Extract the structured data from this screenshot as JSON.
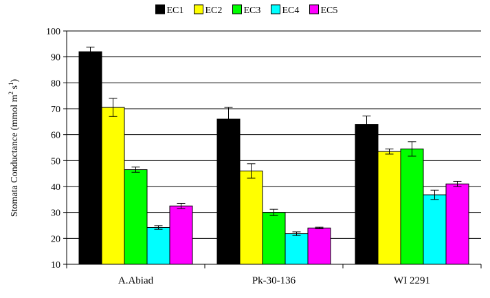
{
  "chart_data": {
    "type": "bar",
    "title": "",
    "xlabel": "",
    "ylabel": "Stomata Conductance (mmol m",
    "ylabel_sup1": "2",
    "ylabel_mid": " s",
    "ylabel_sup2": "1",
    "ylabel_end": ")",
    "ylim": [
      10,
      100
    ],
    "yticks": [
      10,
      20,
      30,
      40,
      50,
      60,
      70,
      80,
      90,
      100
    ],
    "grid": true,
    "legend_position": "top-center",
    "categories": [
      "A.Abiad",
      "Pk-30-136",
      "WI 2291"
    ],
    "series": [
      {
        "name": "EC1",
        "color": "#000000",
        "values": [
          92,
          66,
          64
        ],
        "errors": [
          1.8,
          4.5,
          3.2
        ]
      },
      {
        "name": "EC2",
        "color": "#ffff00",
        "values": [
          70.5,
          46,
          53.5
        ],
        "errors": [
          3.5,
          2.8,
          1
        ]
      },
      {
        "name": "EC3",
        "color": "#00ff00",
        "values": [
          46.5,
          30,
          54.5
        ],
        "errors": [
          1,
          1.2,
          2.8
        ]
      },
      {
        "name": "EC4",
        "color": "#00ffff",
        "values": [
          24.2,
          21.8,
          36.8
        ],
        "errors": [
          0.7,
          0.7,
          1.8
        ]
      },
      {
        "name": "EC5",
        "color": "#ff00ff",
        "values": [
          32.5,
          24,
          41
        ],
        "errors": [
          1,
          0.3,
          1
        ]
      }
    ]
  }
}
